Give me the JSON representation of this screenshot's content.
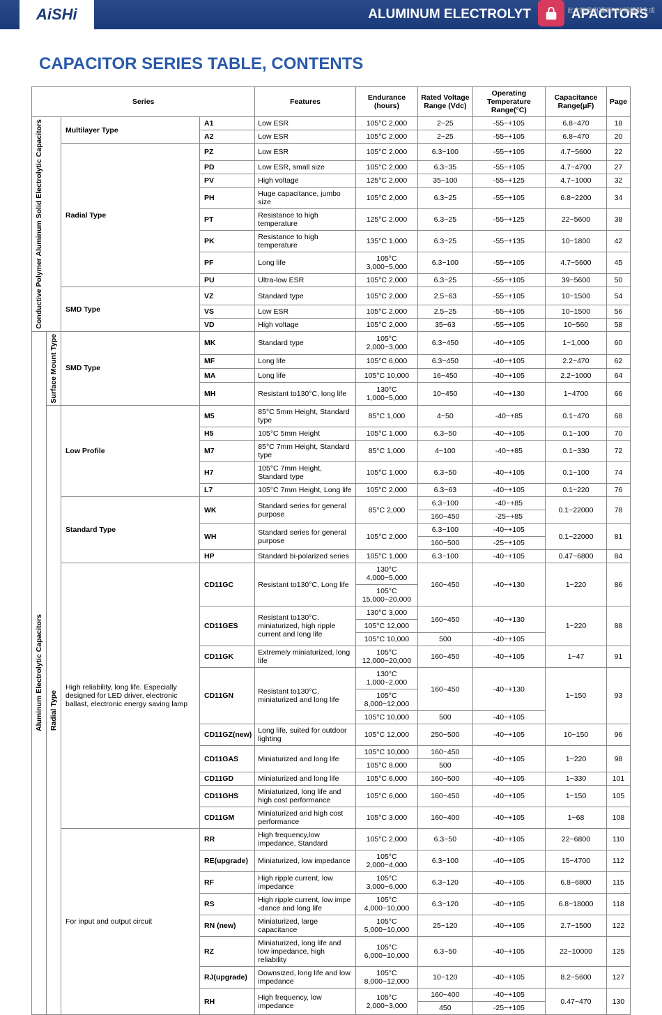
{
  "watermark": "此文档是用福昕PDF编辑器生成",
  "logo": "AiSHi",
  "header_title_left": "ALUMINUM ELECTROLYT",
  "header_title_right": "APACITORS",
  "page_title": "CAPACITOR SERIES TABLE, CONTENTS",
  "headers": {
    "series": "Series",
    "features": "Features",
    "endurance": "Endurance (hours)",
    "voltage": "Rated Voltage Range (Vdc)",
    "temp": "Operating Temperature Range(°C)",
    "cap": "Capacitance Range(μF)",
    "page": "Page"
  },
  "group1_label": "Conductive Polymer Aluminum Solid Electrolytic Capacitors",
  "group2_label": "Aluminum Electrolytic Capacitors",
  "radial_type_label": "Radial Type",
  "type1": "Multilayer Type",
  "type2": "Radial Type",
  "type3": "SMD Type",
  "type4": "SMD Type",
  "surface_mount": "Surface Mount Type",
  "type5": "Low Profile",
  "type6": "Standard Type",
  "type7a": "High reliability, long life. Especially designed for LED driver, electronic ballast, electronic energy saving lamp",
  "type8": "For input and output circuit",
  "rows_multilayer": [
    {
      "c": "A1",
      "f": "Low ESR",
      "e": "105°C 2,000",
      "v": "2~25",
      "t": "-55~+105",
      "cap": "6.8~470",
      "p": "18"
    },
    {
      "c": "A2",
      "f": "Low ESR",
      "e": "105°C 2,000",
      "v": "2~25",
      "t": "-55~+105",
      "cap": "6.8~470",
      "p": "20"
    }
  ],
  "rows_radial1": [
    {
      "c": "PZ",
      "f": "Low ESR",
      "e": "105°C 2,000",
      "v": "6.3~100",
      "t": "-55~+105",
      "cap": "4.7~5600",
      "p": "22"
    },
    {
      "c": "PD",
      "f": "Low ESR, small size",
      "e": "105°C 2,000",
      "v": "6.3~35",
      "t": "-55~+105",
      "cap": "4.7~4700",
      "p": "27"
    },
    {
      "c": "PV",
      "f": "High voltage",
      "e": "125°C 2,000",
      "v": "35~100",
      "t": "-55~+125",
      "cap": "4.7~1000",
      "p": "32"
    },
    {
      "c": "PH",
      "f": "Huge capacitance, jumbo size",
      "e": "105°C 2,000",
      "v": "6.3~25",
      "t": "-55~+105",
      "cap": "6.8~2200",
      "p": "34"
    },
    {
      "c": "PT",
      "f": "Resistance to high temperature",
      "e": "125°C 2,000",
      "v": "6.3~25",
      "t": "-55~+125",
      "cap": "22~5600",
      "p": "38"
    },
    {
      "c": "PK",
      "f": "Resistance to high temperature",
      "e": "135°C 1,000",
      "v": "6.3~25",
      "t": "-55~+135",
      "cap": "10~1800",
      "p": "42"
    },
    {
      "c": "PF",
      "f": "Long life",
      "e": "105°C 3,000~5,000",
      "v": "6.3~100",
      "t": "-55~+105",
      "cap": "4.7~5600",
      "p": "45"
    },
    {
      "c": "PU",
      "f": "Ultra-low ESR",
      "e": "105°C 2,000",
      "v": "6.3~25",
      "t": "-55~+105",
      "cap": "39~5600",
      "p": "50"
    }
  ],
  "rows_smd1": [
    {
      "c": "VZ",
      "f": "Standard type",
      "e": "105°C 2,000",
      "v": "2.5~63",
      "t": "-55~+105",
      "cap": "10~1500",
      "p": "54"
    },
    {
      "c": "VS",
      "f": "Low ESR",
      "e": "105°C 2,000",
      "v": "2.5~25",
      "t": "-55~+105",
      "cap": "10~1500",
      "p": "56"
    },
    {
      "c": "VD",
      "f": "High voltage",
      "e": "105°C 2,000",
      "v": "35~63",
      "t": "-55~+105",
      "cap": "10~560",
      "p": "58"
    }
  ],
  "rows_smd2": [
    {
      "c": "MK",
      "f": "Standard type",
      "e": "105°C 2,000~3,000",
      "v": "6.3~450",
      "t": "-40~+105",
      "cap": "1~1,000",
      "p": "60"
    },
    {
      "c": "MF",
      "f": "Long life",
      "e": "105°C 6,000",
      "v": "6.3~450",
      "t": "-40~+105",
      "cap": "2.2~470",
      "p": "62"
    },
    {
      "c": "MA",
      "f": "Long life",
      "e": "105°C 10,000",
      "v": "16~450",
      "t": "-40~+105",
      "cap": "2.2~1000",
      "p": "64"
    },
    {
      "c": "MH",
      "f": "Resistant to130°C, long life",
      "e": "130°C 1,000~5,000",
      "v": "10~450",
      "t": "-40~+130",
      "cap": "1~4700",
      "p": "66"
    }
  ],
  "rows_lowprofile": [
    {
      "c": "M5",
      "f": "85°C 5mm Height, Standard type",
      "e": "85°C 1,000",
      "v": "4~50",
      "t": "-40~+85",
      "cap": "0.1~470",
      "p": "68"
    },
    {
      "c": "H5",
      "f": "105°C 5mm Height",
      "e": "105°C 1,000",
      "v": "6.3~50",
      "t": "-40~+105",
      "cap": "0.1~100",
      "p": "70"
    },
    {
      "c": "M7",
      "f": "85°C 7mm Height, Standard type",
      "e": "85°C 1,000",
      "v": "4~100",
      "t": "-40~+85",
      "cap": "0.1~330",
      "p": "72"
    },
    {
      "c": "H7",
      "f": "105°C 7mm Height, Standard type",
      "e": "105°C 1,000",
      "v": "6.3~50",
      "t": "-40~+105",
      "cap": "0.1~100",
      "p": "74"
    },
    {
      "c": "L7",
      "f": "105°C 7mm Height, Long life",
      "e": "105°C 2,000",
      "v": "6.3~63",
      "t": "-40~+105",
      "cap": "0.1~220",
      "p": "76"
    }
  ],
  "rows_std": [
    {
      "c": "WK",
      "f": "Standard series for general purpose",
      "e": "85°C 2,000",
      "v1": "6.3~100",
      "v2": "160~450",
      "t1": "-40~+85",
      "t2": "-25~+85",
      "cap": "0.1~22000",
      "p": "78"
    },
    {
      "c": "WH",
      "f": "Standard series for general purpose",
      "e": "105°C 2,000",
      "v1": "6.3~100",
      "v2": "160~500",
      "t1": "-40~+105",
      "t2": "-25~+105",
      "cap": "0.1~22000",
      "p": "81"
    },
    {
      "c": "HP",
      "f": "Standard bi-polarized series",
      "e": "105°C 1,000",
      "v": "6.3~100",
      "t": "-40~+105",
      "cap": "0.47~6800",
      "p": "84"
    }
  ],
  "rows_highrel": [
    {
      "c": "CD11GC",
      "f": "Resistant to130°C, Long life",
      "e1": "130°C 4,000~5,000",
      "e2": "105°C 15,000~20,000",
      "v": "160~450",
      "t": "-40~+130",
      "cap": "1~220",
      "p": "86"
    },
    {
      "c": "CD11GES",
      "f": "Resistant to130°C, miniaturized, high ripple current and long life",
      "e1": "130°C 3,000",
      "e2": "105°C 12,000",
      "e3": "105°C 10,000",
      "v1": "160~450",
      "v2": "500",
      "t1": "-40~+130",
      "t2": "-40~+105",
      "cap": "1~220",
      "p": "88"
    },
    {
      "c": "CD11GK",
      "f": "Extremely miniaturized, long life",
      "e": "105°C 12,000~20,000",
      "v": "160~450",
      "t": "-40~+105",
      "cap": "1~47",
      "p": "91"
    },
    {
      "c": "CD11GN",
      "f": "Resistant to130°C, miniaturized and long life",
      "e1": "130°C 1,000~2,000",
      "e2": "105°C 8,000~12,000",
      "e3": "105°C 10,000",
      "v1": "160~450",
      "v2": "500",
      "t1": "-40~+130",
      "t2": "-40~+105",
      "cap": "1~150",
      "p": "93"
    },
    {
      "c": "CD11GZ(new)",
      "f": "Long life, suited for outdoor lighting",
      "e": "105°C 12,000",
      "v": "250~500",
      "t": "-40~+105",
      "cap": "10~150",
      "p": "96"
    },
    {
      "c": "CD11GAS",
      "f": "Miniaturized and long life",
      "e1": "105°C 10,000",
      "e2": "105°C 8,000",
      "v1": "160~450",
      "v2": "500",
      "t": "-40~+105",
      "cap": "1~220",
      "p": "98"
    },
    {
      "c": "CD11GD",
      "f": "Miniaturized and long life",
      "e": "105°C 6,000",
      "v": "160~500",
      "t": "-40~+105",
      "cap": "1~330",
      "p": "101"
    },
    {
      "c": "CD11GHS",
      "f": "Miniaturized, long life and high cost performance",
      "e": "105°C 6,000",
      "v": "160~450",
      "t": "-40~+105",
      "cap": "1~150",
      "p": "105"
    },
    {
      "c": "CD11GM",
      "f": "Miniaturized and high cost performance",
      "e": "105°C 3,000",
      "v": "160~400",
      "t": "-40~+105",
      "cap": "1~68",
      "p": "108"
    }
  ],
  "rows_io": [
    {
      "c": "RR",
      "f": "High frequency,low impedance, Standard",
      "e": "105°C 2,000",
      "v": "6.3~50",
      "t": "-40~+105",
      "cap": "22~6800",
      "p": "110"
    },
    {
      "c": "RE(upgrade)",
      "f": "Miniaturized, low impedance",
      "e": "105°C 2,000~4,000",
      "v": "6.3~100",
      "t": "-40~+105",
      "cap": "15~4700",
      "p": "112"
    },
    {
      "c": "RF",
      "f": "High ripple current, low impedance",
      "e": "105°C 3,000~6,000",
      "v": "6.3~120",
      "t": "-40~+105",
      "cap": "6.8~6800",
      "p": "115"
    },
    {
      "c": "RS",
      "f": "High ripple current, low impe -dance and long life",
      "e": "105°C 4,000~10,000",
      "v": "6.3~120",
      "t": "-40~+105",
      "cap": "6.8~18000",
      "p": "118"
    },
    {
      "c": "RN (new)",
      "f": "Miniaturized, large capacitance",
      "e": "105°C 5,000~10,000",
      "v": "25~120",
      "t": "-40~+105",
      "cap": "2.7~1500",
      "p": "122"
    },
    {
      "c": "RZ",
      "f": "Miniaturized, long life and low impedance, high reliability",
      "e": "105°C 6,000~10,000",
      "v": "6.3~50",
      "t": "-40~+105",
      "cap": "22~10000",
      "p": "125"
    },
    {
      "c": "RJ(upgrade)",
      "f": "Downsized, long life and low impedance",
      "e": "105°C 8,000~12,000",
      "v": "10~120",
      "t": "-40~+105",
      "cap": "8.2~5600",
      "p": "127"
    },
    {
      "c": "RH",
      "f": "High frequency, low impedance",
      "e": "105°C 2,000~3,000",
      "v1": "160~400",
      "v2": "450",
      "t1": "-40~+105",
      "t2": "-25~+105",
      "cap": "0.47~470",
      "p": "130"
    }
  ]
}
